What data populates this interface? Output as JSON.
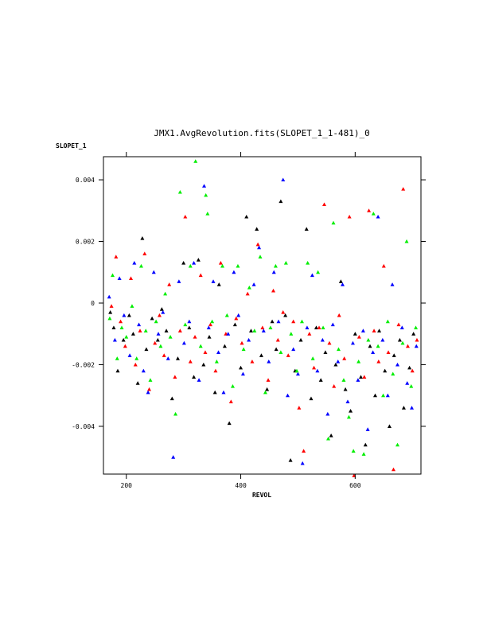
{
  "chart_data": {
    "type": "scatter",
    "title": "JMX1.AvgRevolution.fits(SLOPET_1_1-481)_0",
    "xlabel": "REVOL",
    "ylabel": "SLOPET_1",
    "xlim": [
      160,
      715
    ],
    "ylim": [
      -0.00555,
      0.00475
    ],
    "x_ticks": [
      200,
      400,
      600
    ],
    "x_tick_labels": [
      "200",
      "400",
      "600"
    ],
    "y_ticks": [
      0.004,
      0.002,
      0,
      -0.002,
      -0.004
    ],
    "y_tick_labels": [
      "0.004",
      "0.002",
      "0",
      "-0.002",
      "-0.004"
    ],
    "grid": false,
    "legend": "none",
    "marker": "triangle",
    "colors": [
      "#000000",
      "#ff0000",
      "#0000ff",
      "#00ee00"
    ],
    "series": [
      {
        "color": "#000000",
        "points": [
          [
            172,
            -0.0003
          ],
          [
            178,
            -0.0008
          ],
          [
            185,
            -0.0022
          ],
          [
            195,
            -0.0012
          ],
          [
            205,
            -0.0004
          ],
          [
            212,
            -0.001
          ],
          [
            220,
            -0.0026
          ],
          [
            228,
            0.0021
          ],
          [
            235,
            -0.0015
          ],
          [
            245,
            -0.0005
          ],
          [
            255,
            -0.0012
          ],
          [
            262,
            -0.0002
          ],
          [
            270,
            -0.0009
          ],
          [
            280,
            -0.0031
          ],
          [
            290,
            -0.0018
          ],
          [
            300,
            0.0013
          ],
          [
            310,
            -0.0008
          ],
          [
            318,
            -0.0024
          ],
          [
            326,
            0.0014
          ],
          [
            335,
            -0.002
          ],
          [
            345,
            -0.0011
          ],
          [
            355,
            -0.0029
          ],
          [
            362,
            0.0006
          ],
          [
            372,
            -0.0014
          ],
          [
            380,
            -0.0039
          ],
          [
            390,
            -0.0007
          ],
          [
            400,
            -0.0021
          ],
          [
            410,
            0.0028
          ],
          [
            418,
            -0.0009
          ],
          [
            428,
            0.0024
          ],
          [
            436,
            -0.0017
          ],
          [
            446,
            -0.0028
          ],
          [
            455,
            -0.0006
          ],
          [
            462,
            -0.0015
          ],
          [
            470,
            0.0033
          ],
          [
            478,
            -0.0004
          ],
          [
            487,
            -0.0051
          ],
          [
            495,
            -0.0022
          ],
          [
            505,
            -0.0012
          ],
          [
            515,
            0.0024
          ],
          [
            523,
            -0.0031
          ],
          [
            532,
            -0.0008
          ],
          [
            540,
            -0.0025
          ],
          [
            548,
            -0.0016
          ],
          [
            558,
            -0.0043
          ],
          [
            566,
            -0.002
          ],
          [
            575,
            0.0007
          ],
          [
            583,
            -0.0028
          ],
          [
            592,
            -0.0035
          ],
          [
            600,
            -0.001
          ],
          [
            610,
            -0.0024
          ],
          [
            618,
            -0.0046
          ],
          [
            626,
            -0.0014
          ],
          [
            635,
            -0.003
          ],
          [
            642,
            -0.0009
          ],
          [
            652,
            -0.0022
          ],
          [
            660,
            -0.004
          ],
          [
            668,
            -0.0017
          ],
          [
            678,
            -0.0012
          ],
          [
            685,
            -0.0034
          ],
          [
            695,
            -0.0021
          ],
          [
            702,
            -0.001
          ]
        ]
      },
      {
        "color": "#ff0000",
        "points": [
          [
            174,
            -0.0001
          ],
          [
            182,
            0.0015
          ],
          [
            190,
            -0.0006
          ],
          [
            198,
            -0.0014
          ],
          [
            208,
            0.0008
          ],
          [
            216,
            -0.002
          ],
          [
            224,
            -0.0009
          ],
          [
            232,
            0.0016
          ],
          [
            240,
            -0.0028
          ],
          [
            250,
            -0.0013
          ],
          [
            258,
            -0.0004
          ],
          [
            266,
            -0.0017
          ],
          [
            275,
            0.0006
          ],
          [
            285,
            -0.0024
          ],
          [
            294,
            -0.0009
          ],
          [
            303,
            0.0028
          ],
          [
            312,
            -0.0019
          ],
          [
            320,
            -0.0011
          ],
          [
            330,
            0.0009
          ],
          [
            338,
            -0.0016
          ],
          [
            347,
            -0.0007
          ],
          [
            356,
            -0.0022
          ],
          [
            365,
            0.0013
          ],
          [
            374,
            -0.001
          ],
          [
            383,
            -0.0032
          ],
          [
            392,
            -0.0005
          ],
          [
            402,
            -0.0013
          ],
          [
            412,
            0.0003
          ],
          [
            420,
            -0.0019
          ],
          [
            430,
            0.0019
          ],
          [
            438,
            -0.0008
          ],
          [
            448,
            -0.0025
          ],
          [
            457,
            0.0004
          ],
          [
            465,
            -0.0012
          ],
          [
            474,
            -0.0003
          ],
          [
            483,
            -0.0017
          ],
          [
            492,
            -0.0006
          ],
          [
            502,
            -0.0034
          ],
          [
            510,
            -0.0048
          ],
          [
            520,
            -0.001
          ],
          [
            528,
            -0.0021
          ],
          [
            537,
            -0.0008
          ],
          [
            546,
            0.0032
          ],
          [
            555,
            -0.0013
          ],
          [
            563,
            -0.0027
          ],
          [
            572,
            -0.0004
          ],
          [
            581,
            -0.0018
          ],
          [
            590,
            0.0028
          ],
          [
            598,
            -0.0056
          ],
          [
            607,
            -0.0011
          ],
          [
            616,
            -0.0024
          ],
          [
            624,
            0.003
          ],
          [
            633,
            -0.0009
          ],
          [
            641,
            -0.0019
          ],
          [
            650,
            0.0012
          ],
          [
            658,
            -0.0016
          ],
          [
            667,
            -0.0054
          ],
          [
            676,
            -0.0007
          ],
          [
            684,
            0.0037
          ],
          [
            692,
            -0.0014
          ],
          [
            700,
            -0.0022
          ],
          [
            708,
            -0.0012
          ]
        ]
      },
      {
        "color": "#0000ff",
        "points": [
          [
            170,
            0.0002
          ],
          [
            180,
            -0.0012
          ],
          [
            188,
            0.0008
          ],
          [
            196,
            -0.0004
          ],
          [
            206,
            -0.0017
          ],
          [
            214,
            0.0013
          ],
          [
            222,
            -0.0007
          ],
          [
            230,
            -0.0022
          ],
          [
            238,
            -0.0029
          ],
          [
            248,
            0.001
          ],
          [
            256,
            -0.001
          ],
          [
            264,
            -0.0003
          ],
          [
            273,
            -0.0018
          ],
          [
            282,
            -0.005
          ],
          [
            292,
            0.0007
          ],
          [
            301,
            -0.0013
          ],
          [
            310,
            -0.0006
          ],
          [
            318,
            0.0013
          ],
          [
            327,
            -0.0025
          ],
          [
            336,
            0.0038
          ],
          [
            344,
            -0.0008
          ],
          [
            352,
            0.0007
          ],
          [
            361,
            -0.0016
          ],
          [
            370,
            -0.0029
          ],
          [
            378,
            -0.001
          ],
          [
            388,
            0.001
          ],
          [
            396,
            -0.0004
          ],
          [
            404,
            -0.0023
          ],
          [
            414,
            -0.0012
          ],
          [
            423,
            0.0006
          ],
          [
            432,
            0.0018
          ],
          [
            440,
            -0.0009
          ],
          [
            449,
            -0.0019
          ],
          [
            458,
            0.001
          ],
          [
            466,
            -0.0006
          ],
          [
            474,
            0.004
          ],
          [
            482,
            -0.003
          ],
          [
            492,
            -0.0015
          ],
          [
            500,
            -0.0023
          ],
          [
            508,
            -0.0052
          ],
          [
            516,
            -0.0008
          ],
          [
            525,
            0.0009
          ],
          [
            534,
            -0.0022
          ],
          [
            543,
            -0.0012
          ],
          [
            552,
            -0.0036
          ],
          [
            561,
            -0.0007
          ],
          [
            570,
            -0.0019
          ],
          [
            578,
            0.0006
          ],
          [
            587,
            -0.0032
          ],
          [
            596,
            -0.0013
          ],
          [
            605,
            -0.0025
          ],
          [
            614,
            -0.0009
          ],
          [
            622,
            -0.0041
          ],
          [
            631,
            -0.0016
          ],
          [
            640,
            0.0028
          ],
          [
            648,
            -0.0012
          ],
          [
            657,
            -0.003
          ],
          [
            665,
            0.0006
          ],
          [
            674,
            -0.002
          ],
          [
            682,
            -0.0008
          ],
          [
            691,
            -0.0026
          ],
          [
            699,
            -0.0034
          ],
          [
            707,
            -0.0014
          ]
        ]
      },
      {
        "color": "#00ee00",
        "points": [
          [
            171,
            -0.0005
          ],
          [
            176,
            0.0009
          ],
          [
            184,
            -0.0018
          ],
          [
            192,
            -0.0008
          ],
          [
            200,
            -0.0011
          ],
          [
            210,
            -0.0001
          ],
          [
            218,
            -0.0018
          ],
          [
            226,
            0.0012
          ],
          [
            234,
            -0.0009
          ],
          [
            242,
            -0.0025
          ],
          [
            252,
            -0.0006
          ],
          [
            260,
            -0.0014
          ],
          [
            268,
            0.0003
          ],
          [
            277,
            -0.0011
          ],
          [
            286,
            -0.0036
          ],
          [
            294,
            0.0036
          ],
          [
            303,
            -0.0007
          ],
          [
            312,
            0.0012
          ],
          [
            321,
            0.0046
          ],
          [
            330,
            -0.0014
          ],
          [
            339,
            0.0035
          ],
          [
            342,
            0.0029
          ],
          [
            350,
            -0.0006
          ],
          [
            358,
            -0.0019
          ],
          [
            368,
            0.0012
          ],
          [
            376,
            -0.0004
          ],
          [
            386,
            -0.0027
          ],
          [
            395,
            0.0012
          ],
          [
            405,
            -0.0015
          ],
          [
            415,
            0.0005
          ],
          [
            424,
            -0.0009
          ],
          [
            434,
            0.0015
          ],
          [
            443,
            -0.0029
          ],
          [
            452,
            -0.0008
          ],
          [
            461,
            0.0012
          ],
          [
            470,
            -0.0016
          ],
          [
            479,
            0.0013
          ],
          [
            488,
            -0.001
          ],
          [
            498,
            -0.0022
          ],
          [
            507,
            -0.0006
          ],
          [
            517,
            0.0013
          ],
          [
            526,
            -0.0018
          ],
          [
            535,
            0.001
          ],
          [
            544,
            -0.0008
          ],
          [
            553,
            -0.0044
          ],
          [
            562,
            0.0026
          ],
          [
            571,
            -0.0015
          ],
          [
            580,
            -0.0025
          ],
          [
            589,
            -0.0037
          ],
          [
            597,
            -0.0048
          ],
          [
            606,
            -0.0019
          ],
          [
            615,
            -0.0049
          ],
          [
            623,
            -0.0012
          ],
          [
            632,
            0.0029
          ],
          [
            640,
            -0.0014
          ],
          [
            649,
            -0.003
          ],
          [
            657,
            -0.0006
          ],
          [
            666,
            -0.0023
          ],
          [
            674,
            -0.0046
          ],
          [
            683,
            -0.0013
          ],
          [
            690,
            0.002
          ],
          [
            698,
            -0.0027
          ],
          [
            706,
            -0.0008
          ]
        ]
      }
    ]
  }
}
